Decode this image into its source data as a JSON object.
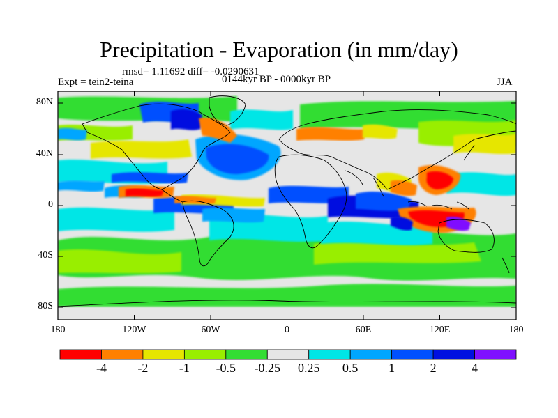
{
  "title": "Precipitation - Evaporation (in mm/day)",
  "stats": "rmsd= 1.11692 diff= -0.0290631",
  "experiment": "Expt = tein2-teina",
  "period": "0144kyr BP - 0000kyr BP",
  "season": "JJA",
  "lat_ticks": [
    "80N",
    "40N",
    "0",
    "40S",
    "80S"
  ],
  "lon_ticks": [
    "180",
    "120W",
    "60W",
    "0",
    "60E",
    "120E",
    "180"
  ],
  "colorbar": {
    "colors": [
      "#ff0000",
      "#ff8000",
      "#e6e600",
      "#99ee00",
      "#33dd33",
      "#e6e6e6",
      "#00e6e6",
      "#00a6ff",
      "#0050ff",
      "#0010e0",
      "#7f10ff"
    ],
    "labels": [
      "-4",
      "-2",
      "-1",
      "-0.5",
      "-0.25",
      "0.25",
      "0.5",
      "1",
      "2",
      "4"
    ]
  }
}
